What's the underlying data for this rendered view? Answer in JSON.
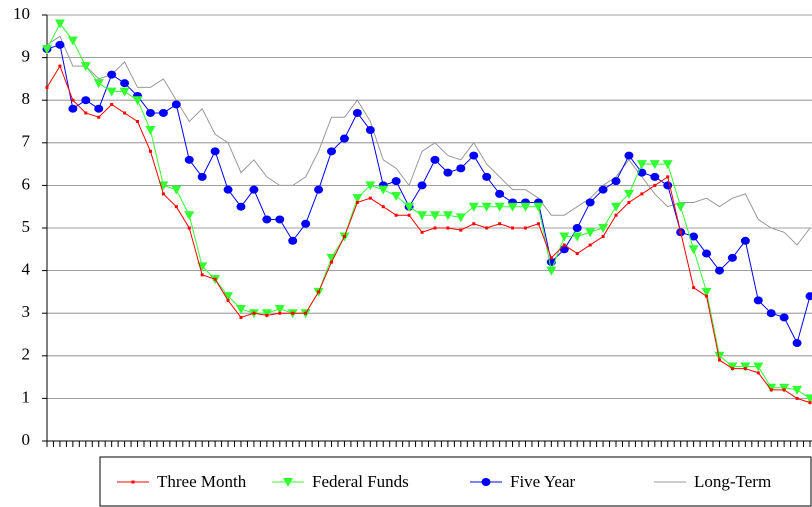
{
  "chart_data": {
    "type": "line",
    "categories": [
      null,
      null,
      null,
      null,
      null,
      null,
      null,
      null,
      null,
      null,
      null,
      null,
      null,
      null,
      null,
      null,
      null,
      null,
      null,
      null,
      null,
      null,
      null,
      null,
      null,
      null,
      null,
      null,
      null,
      null,
      null,
      null,
      null,
      null,
      null,
      null,
      null,
      null,
      null,
      null,
      null,
      null,
      null,
      null,
      null,
      null,
      null,
      null,
      null,
      null,
      null,
      null,
      null,
      null,
      null,
      null,
      null,
      null,
      null,
      null
    ],
    "ylim": [
      0,
      10
    ],
    "yticks": [
      0,
      1,
      2,
      3,
      4,
      5,
      6,
      7,
      8,
      9,
      10
    ],
    "grid": true,
    "legend": "bottom",
    "series": [
      {
        "name": "Three Month",
        "color": "#ff0000",
        "marker": "square",
        "values": [
          8.3,
          8.8,
          8.0,
          7.7,
          7.6,
          7.9,
          7.7,
          7.5,
          6.8,
          5.8,
          5.5,
          5.0,
          3.9,
          3.8,
          3.3,
          2.9,
          3.0,
          2.95,
          3.0,
          3.0,
          3.0,
          3.5,
          4.2,
          4.8,
          5.6,
          5.7,
          5.5,
          5.3,
          5.3,
          4.9,
          5.0,
          5.0,
          4.95,
          5.1,
          5.0,
          5.1,
          5.0,
          5.0,
          5.1,
          4.3,
          4.6,
          4.4,
          4.6,
          4.8,
          5.3,
          5.6,
          5.8,
          6.0,
          6.2,
          4.9,
          3.6,
          3.4,
          1.9,
          1.7,
          1.7,
          1.6,
          1.2,
          1.2,
          1.0,
          0.9
        ]
      },
      {
        "name": "Federal Funds",
        "color": "#33ff33",
        "marker": "triangle",
        "values": [
          9.2,
          9.8,
          9.4,
          8.8,
          8.4,
          8.2,
          8.2,
          8.0,
          7.3,
          6.0,
          5.9,
          5.3,
          4.1,
          3.8,
          3.4,
          3.1,
          3.0,
          3.0,
          3.1,
          3.0,
          3.0,
          3.5,
          4.3,
          4.8,
          5.7,
          6.0,
          5.9,
          5.75,
          5.5,
          5.3,
          5.3,
          5.3,
          5.25,
          5.5,
          5.5,
          5.5,
          5.5,
          5.5,
          5.5,
          4.0,
          4.8,
          4.8,
          4.9,
          5.0,
          5.5,
          5.8,
          6.5,
          6.5,
          6.5,
          5.5,
          4.5,
          3.5,
          2.0,
          1.75,
          1.75,
          1.75,
          1.25,
          1.25,
          1.2,
          1.0
        ]
      },
      {
        "name": "Five Year",
        "color": "#0000ff",
        "marker": "circle",
        "values": [
          9.2,
          9.3,
          7.8,
          8.0,
          7.8,
          8.6,
          8.4,
          8.1,
          7.7,
          7.7,
          7.9,
          6.6,
          6.2,
          6.8,
          5.9,
          5.5,
          5.9,
          5.2,
          5.2,
          4.7,
          5.1,
          5.9,
          6.8,
          7.1,
          7.7,
          7.3,
          6.0,
          6.1,
          5.5,
          6.0,
          6.6,
          6.3,
          6.4,
          6.7,
          6.2,
          5.8,
          5.6,
          5.6,
          5.6,
          4.2,
          4.5,
          5.0,
          5.6,
          5.9,
          6.1,
          6.7,
          6.3,
          6.2,
          6.0,
          4.9,
          4.8,
          4.4,
          4.0,
          4.3,
          4.7,
          3.3,
          3.0,
          2.9,
          2.3,
          3.4
        ]
      },
      {
        "name": "Long-Term",
        "color": "#999999",
        "values": [
          9.3,
          9.5,
          8.8,
          8.8,
          8.5,
          8.6,
          8.9,
          8.3,
          8.3,
          8.5,
          8.0,
          7.5,
          7.8,
          7.2,
          7.0,
          6.3,
          6.6,
          6.2,
          6.0,
          6.0,
          6.2,
          6.8,
          7.6,
          7.6,
          8.0,
          7.5,
          6.6,
          6.4,
          6.0,
          6.8,
          7.0,
          6.7,
          6.6,
          7.0,
          6.5,
          6.2,
          5.9,
          5.9,
          5.7,
          5.3,
          5.3,
          5.5,
          5.7,
          6.0,
          6.2,
          6.6,
          6.2,
          5.8,
          5.5,
          5.6,
          5.6,
          5.7,
          5.5,
          5.7,
          5.8,
          5.2,
          5.0,
          4.9,
          4.6,
          5.0
        ]
      }
    ]
  }
}
